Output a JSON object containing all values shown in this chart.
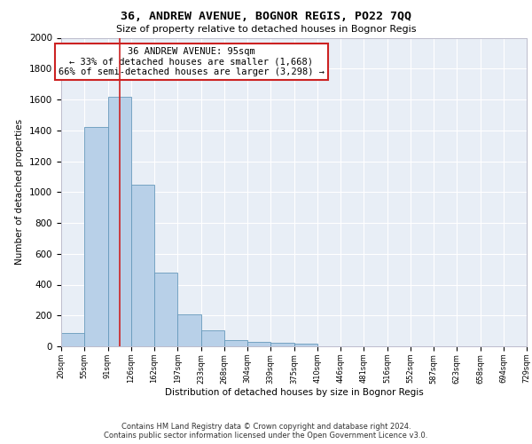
{
  "title1": "36, ANDREW AVENUE, BOGNOR REGIS, PO22 7QQ",
  "title2": "Size of property relative to detached houses in Bognor Regis",
  "xlabel": "Distribution of detached houses by size in Bognor Regis",
  "ylabel": "Number of detached properties",
  "bar_values": [
    85,
    1420,
    1620,
    1050,
    480,
    205,
    105,
    40,
    28,
    22,
    18,
    0,
    0,
    0,
    0,
    0,
    0,
    0,
    0,
    0
  ],
  "x_labels": [
    "20sqm",
    "55sqm",
    "91sqm",
    "126sqm",
    "162sqm",
    "197sqm",
    "233sqm",
    "268sqm",
    "304sqm",
    "339sqm",
    "375sqm",
    "410sqm",
    "446sqm",
    "481sqm",
    "516sqm",
    "552sqm",
    "587sqm",
    "623sqm",
    "658sqm",
    "694sqm",
    "729sqm"
  ],
  "bar_color": "#b8d0e8",
  "bar_edge_color": "#6699bb",
  "background_color": "#e8eef6",
  "grid_color": "#ffffff",
  "vline_color": "#cc2222",
  "vline_x": 2.0,
  "annotation_text": "36 ANDREW AVENUE: 95sqm\n← 33% of detached houses are smaller (1,668)\n66% of semi-detached houses are larger (3,298) →",
  "annotation_box_color": "#ffffff",
  "annotation_box_edge": "#cc2222",
  "footnote1": "Contains HM Land Registry data © Crown copyright and database right 2024.",
  "footnote2": "Contains public sector information licensed under the Open Government Licence v3.0.",
  "ylim": [
    0,
    2000
  ],
  "yticks": [
    0,
    200,
    400,
    600,
    800,
    1000,
    1200,
    1400,
    1600,
    1800,
    2000
  ]
}
